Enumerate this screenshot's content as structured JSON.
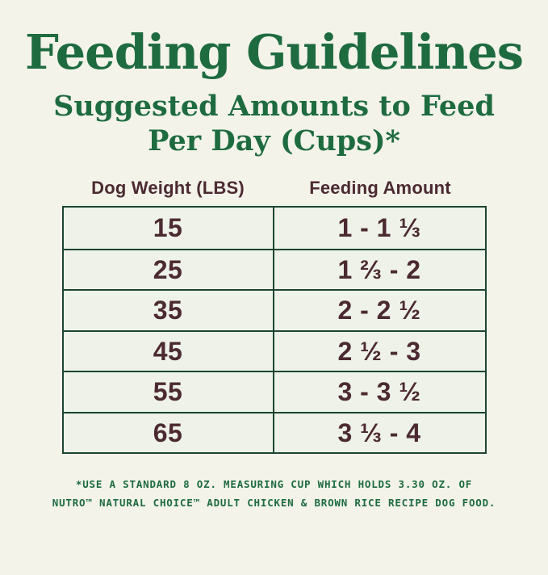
{
  "header": {
    "title": "Feeding Guidelines",
    "subtitle_line1": "Suggested Amounts to Feed",
    "subtitle_line2": "Per Day (Cups)*"
  },
  "table": {
    "col_headers": [
      "Dog Weight (LBS)",
      "Feeding Amount"
    ],
    "rows": [
      {
        "weight": "15",
        "amount": "1 - 1 ⅓"
      },
      {
        "weight": "25",
        "amount": "1 ⅔ - 2"
      },
      {
        "weight": "35",
        "amount": "2 - 2 ½"
      },
      {
        "weight": "45",
        "amount": "2 ½ - 3"
      },
      {
        "weight": "55",
        "amount": "3 - 3 ½"
      },
      {
        "weight": "65",
        "amount": "3 ⅓ - 4"
      }
    ]
  },
  "footnote": {
    "line1": "*USE A STANDARD 8 OZ. MEASURING CUP WHICH HOLDS 3.30 OZ. OF",
    "line2": "NUTRO™ NATURAL CHOICE™ ADULT CHICKEN & BROWN RICE RECIPE DOG FOOD."
  },
  "colors": {
    "background": "#f3f3ea",
    "cell_background": "#eef2e8",
    "green_text": "#1e6b40",
    "border_green": "#1c4531",
    "brown_text": "#4c2a31"
  }
}
